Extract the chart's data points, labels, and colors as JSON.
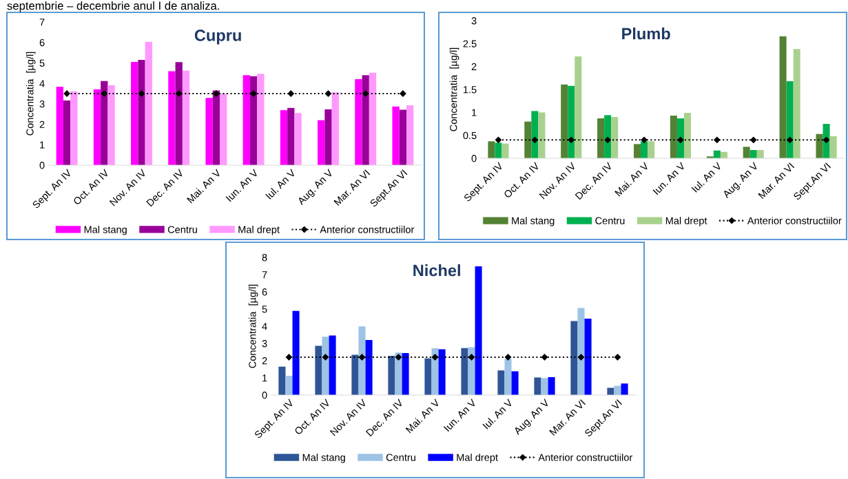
{
  "chart_data": [
    {
      "type": "bar",
      "title": "Cupru",
      "ylabel": "Concentratia  [µg/l]",
      "annotations": [
        "septembrie – decembrie anul I de analiza."
      ],
      "categories": [
        "Sept. An IV",
        "Oct. An IV",
        "Nov. An IV",
        "Dec. An IV",
        "Mai. An V",
        "Iun. An V",
        "Iul. An V",
        "Aug. An V",
        "Mar. An VI",
        "Sept.An VI"
      ],
      "series": [
        {
          "name": "Mal stang",
          "color": "#ff00ff",
          "values": [
            3.84,
            3.71,
            5.05,
            4.59,
            3.29,
            4.4,
            2.69,
            2.2,
            4.21,
            2.87
          ]
        },
        {
          "name": "Centru",
          "color": "#990099",
          "values": [
            3.16,
            4.11,
            5.15,
            5.04,
            3.65,
            4.35,
            2.8,
            2.73,
            4.4,
            2.71
          ]
        },
        {
          "name": "Mal drept",
          "color": "#ff99ff",
          "values": [
            3.61,
            3.91,
            6.03,
            4.63,
            3.49,
            4.47,
            2.55,
            3.56,
            4.52,
            2.93
          ]
        },
        {
          "name": "Anterior constructiilor",
          "type": "line",
          "color": "#000000",
          "marker": "diamond",
          "line_style": "dotted",
          "values": [
            3.5,
            3.5,
            3.5,
            3.5,
            3.5,
            3.5,
            3.5,
            3.5,
            3.5,
            3.5
          ]
        }
      ],
      "ylim": [
        0,
        7
      ],
      "yticks": [
        0,
        1,
        2,
        3,
        4,
        5,
        6,
        7
      ],
      "grid": false,
      "legend": "bottom"
    },
    {
      "type": "bar",
      "title": "Plumb",
      "ylabel": "Concentratia  [µg/l]",
      "categories": [
        "Sept. An IV",
        "Oct. An IV",
        "Nov. An IV",
        "Dec. An IV",
        "Mai. An V",
        "Iun. An V",
        "Iul. An V",
        "Aug. An V",
        "Mar. An VI",
        "Sept.An VI"
      ],
      "series": [
        {
          "name": "Mal stang",
          "color": "#548235",
          "values": [
            0.37,
            0.8,
            1.61,
            0.87,
            0.31,
            0.93,
            0.04,
            0.25,
            2.66,
            0.53
          ]
        },
        {
          "name": "Centru",
          "color": "#00b050",
          "values": [
            0.34,
            1.03,
            1.58,
            0.94,
            0.37,
            0.87,
            0.17,
            0.18,
            1.68,
            0.75
          ]
        },
        {
          "name": "Mal drept",
          "color": "#a9d18e",
          "values": [
            0.32,
            1.0,
            2.22,
            0.9,
            0.37,
            0.99,
            0.14,
            0.18,
            2.38,
            0.48
          ]
        },
        {
          "name": "Anterior constructiilor",
          "type": "line",
          "color": "#000000",
          "marker": "diamond",
          "line_style": "dotted",
          "values": [
            0.4,
            0.4,
            0.4,
            0.4,
            0.4,
            0.4,
            0.4,
            0.4,
            0.4,
            0.4
          ]
        }
      ],
      "ylim": [
        0,
        3
      ],
      "yticks": [
        0,
        0.5,
        1,
        1.5,
        2,
        2.5,
        3
      ],
      "grid": false,
      "legend": "bottom"
    },
    {
      "type": "bar",
      "title": "Nichel",
      "ylabel": "Concentratia  [µg/l]",
      "categories": [
        "Sept. An IV",
        "Oct. An IV",
        "Nov. An IV",
        "Dec. An IV",
        "Mai. An V",
        "Iun. An V",
        "Iul. An V",
        "Aug. An V",
        "Mar. An VI",
        "Sept.An VI"
      ],
      "series": [
        {
          "name": "Mal stang",
          "color": "#2f5597",
          "values": [
            1.65,
            2.86,
            2.34,
            2.28,
            2.13,
            2.73,
            1.43,
            1.02,
            4.3,
            0.42
          ]
        },
        {
          "name": "Centru",
          "color": "#9dc3e6",
          "values": [
            1.12,
            3.39,
            3.99,
            2.47,
            2.72,
            2.78,
            2.1,
            0.99,
            5.06,
            0.54
          ]
        },
        {
          "name": "Mal drept",
          "color": "#0000ff",
          "values": [
            4.89,
            3.46,
            3.2,
            2.44,
            2.66,
            7.48,
            1.38,
            1.04,
            4.44,
            0.67
          ]
        },
        {
          "name": "Anterior constructiilor",
          "type": "line",
          "color": "#000000",
          "marker": "diamond",
          "line_style": "dotted",
          "values": [
            2.2,
            2.2,
            2.2,
            2.2,
            2.2,
            2.2,
            2.2,
            2.2,
            2.2,
            2.2
          ]
        }
      ],
      "ylim": [
        0,
        8
      ],
      "yticks": [
        0,
        1,
        2,
        3,
        4,
        5,
        6,
        7,
        8
      ],
      "grid": false,
      "legend": "bottom"
    }
  ]
}
